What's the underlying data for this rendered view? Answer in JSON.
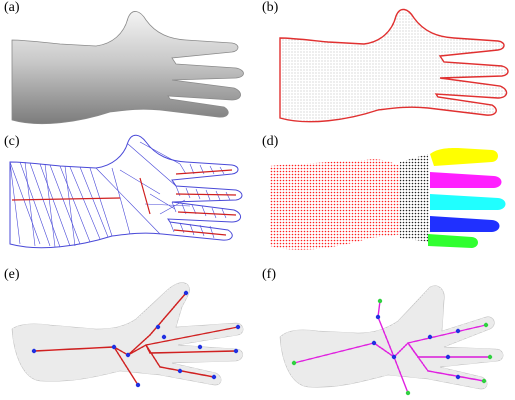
{
  "figure": {
    "panels": [
      {
        "label": "(a)"
      },
      {
        "label": "(b)"
      },
      {
        "label": "(c)"
      },
      {
        "label": "(d)"
      },
      {
        "label": "(e)"
      },
      {
        "label": "(f)"
      }
    ]
  },
  "colors": {
    "shade": "#9a9a9a",
    "contour": "#e03030",
    "mesh": "#4a4ad8",
    "skeleton_red": "#d02020",
    "node_blue": "#2030e0",
    "skeleton_magenta": "#e020e0",
    "node_green": "#30d040",
    "seg_red": "#ff2020",
    "seg_black": "#222222",
    "seg_yellow": "#ffff00",
    "seg_magenta": "#ff20ff",
    "seg_cyan": "#20ffff",
    "seg_blue": "#2030ff",
    "seg_green": "#30ff30"
  }
}
